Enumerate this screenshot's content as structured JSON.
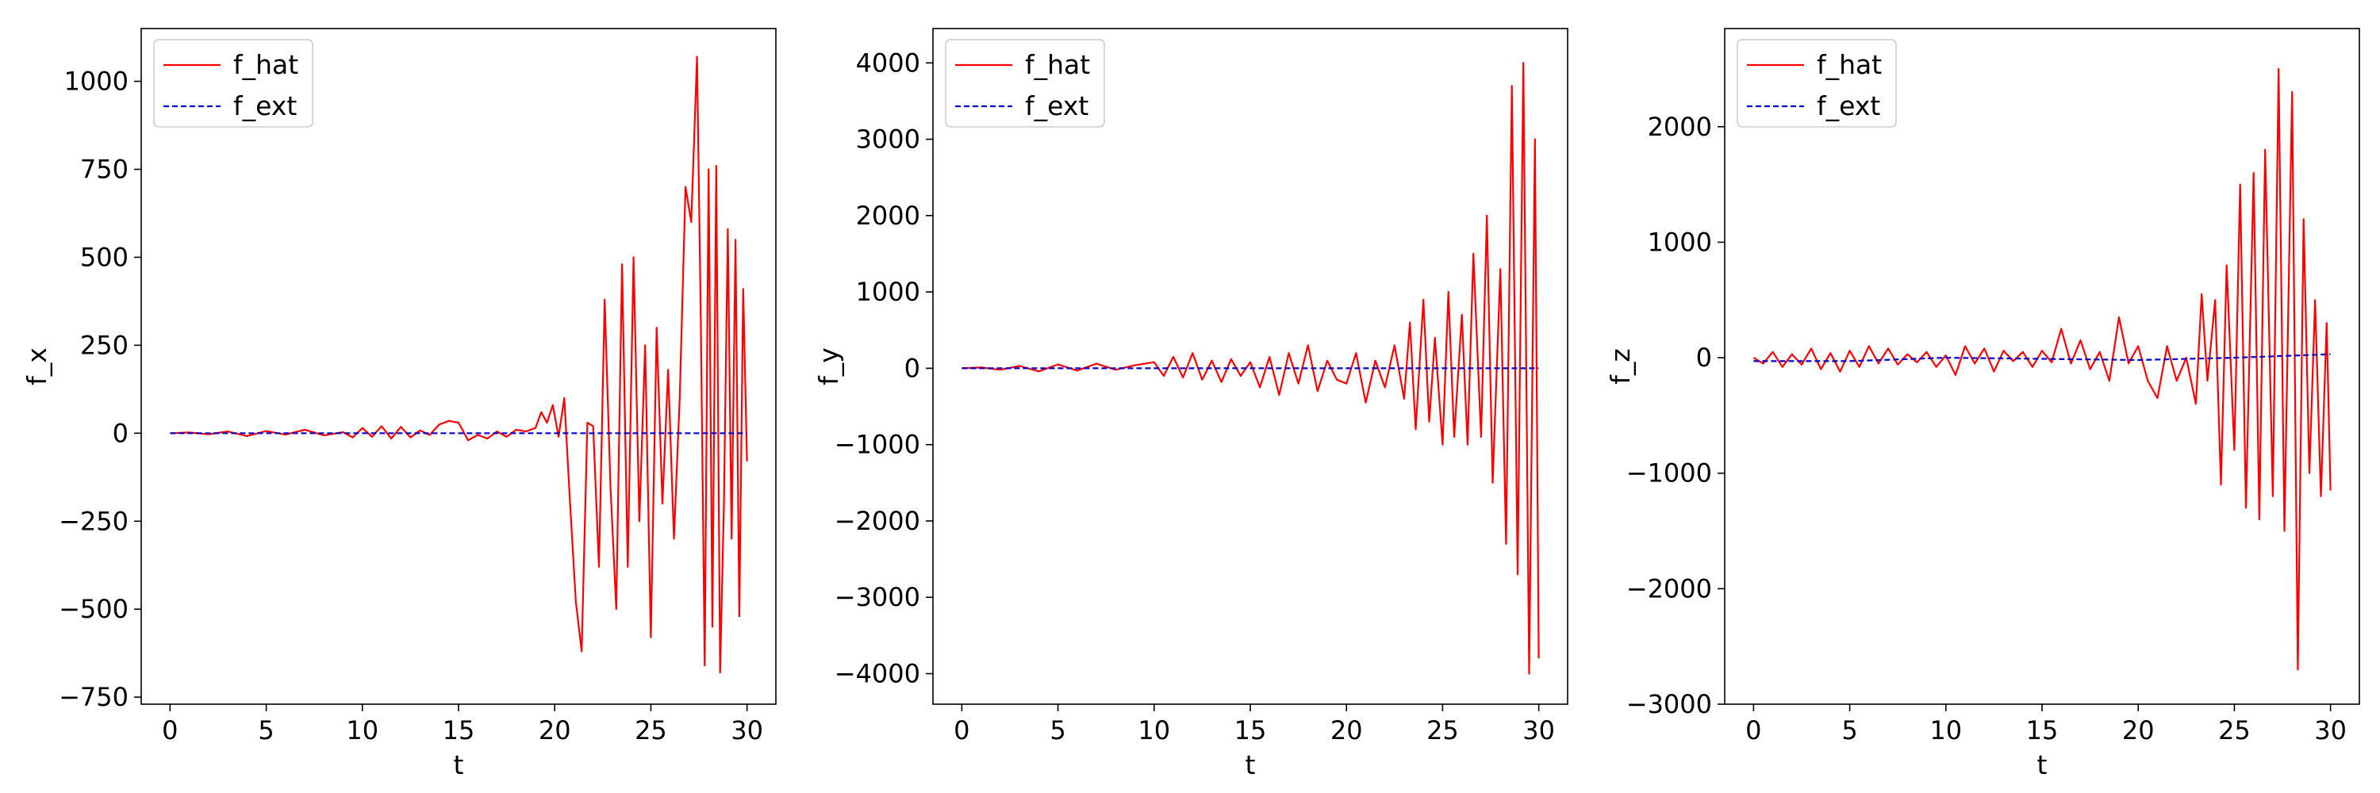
{
  "colors": {
    "f_hat": "#ff0000",
    "f_ext": "#0000cc",
    "frame": "#000000",
    "legend_border": "#cccccc"
  },
  "chart_data": [
    {
      "type": "line",
      "title": "",
      "xlabel": "t",
      "ylabel": "f_x",
      "xlim": [
        -1.5,
        31.5
      ],
      "ylim": [
        -770,
        1150
      ],
      "xticks": [
        0,
        5,
        10,
        15,
        20,
        25,
        30
      ],
      "yticks": [
        -750,
        -500,
        -250,
        0,
        250,
        500,
        750,
        1000
      ],
      "ytick_labels": [
        "−750",
        "−500",
        "−250",
        "0",
        "250",
        "500",
        "750",
        "1000"
      ],
      "legend": "top-left",
      "series": [
        {
          "name": "f_hat",
          "style": "solid",
          "x": [
            0,
            1,
            2,
            3,
            4,
            5,
            6,
            7,
            8,
            9,
            9.5,
            10,
            10.5,
            11,
            11.5,
            12,
            12.5,
            13,
            13.5,
            14,
            14.5,
            15,
            15.5,
            16,
            16.5,
            17,
            17.5,
            18,
            18.5,
            19,
            19.3,
            19.6,
            19.9,
            20.2,
            20.5,
            20.8,
            21.1,
            21.4,
            21.7,
            22,
            22.3,
            22.6,
            22.9,
            23.2,
            23.5,
            23.8,
            24.1,
            24.4,
            24.7,
            25,
            25.3,
            25.6,
            25.9,
            26.2,
            26.5,
            26.8,
            27.1,
            27.4,
            27.6,
            27.8,
            28,
            28.2,
            28.4,
            28.6,
            28.8,
            29,
            29.2,
            29.4,
            29.6,
            29.8,
            30
          ],
          "y": [
            0,
            2,
            -3,
            5,
            -8,
            6,
            -4,
            10,
            -6,
            3,
            -12,
            15,
            -10,
            20,
            -15,
            18,
            -12,
            8,
            -5,
            25,
            35,
            30,
            -20,
            -5,
            -15,
            5,
            -10,
            10,
            5,
            15,
            60,
            30,
            80,
            -10,
            100,
            -200,
            -480,
            -620,
            30,
            20,
            -380,
            380,
            -150,
            -500,
            480,
            -380,
            500,
            -250,
            250,
            -580,
            300,
            -200,
            180,
            -300,
            100,
            700,
            600,
            1070,
            300,
            -660,
            750,
            -550,
            760,
            -680,
            -200,
            580,
            -300,
            550,
            -520,
            410,
            -80
          ]
        },
        {
          "name": "f_ext",
          "style": "dashed",
          "x": [
            0,
            5,
            10,
            15,
            20,
            25,
            30
          ],
          "y": [
            0,
            0,
            0,
            0,
            0,
            0,
            0
          ]
        }
      ]
    },
    {
      "type": "line",
      "title": "",
      "xlabel": "t",
      "ylabel": "f_y",
      "xlim": [
        -1.5,
        31.5
      ],
      "ylim": [
        -4400,
        4450
      ],
      "xticks": [
        0,
        5,
        10,
        15,
        20,
        25,
        30
      ],
      "yticks": [
        -4000,
        -3000,
        -2000,
        -1000,
        0,
        1000,
        2000,
        3000,
        4000
      ],
      "ytick_labels": [
        "−4000",
        "−3000",
        "−2000",
        "−1000",
        "0",
        "1000",
        "2000",
        "3000",
        "4000"
      ],
      "legend": "top-left",
      "series": [
        {
          "name": "f_hat",
          "style": "solid",
          "x": [
            0,
            1,
            2,
            3,
            4,
            5,
            6,
            7,
            8,
            9,
            10,
            10.5,
            11,
            11.5,
            12,
            12.5,
            13,
            13.5,
            14,
            14.5,
            15,
            15.5,
            16,
            16.5,
            17,
            17.5,
            18,
            18.5,
            19,
            19.5,
            20,
            20.5,
            21,
            21.5,
            22,
            22.5,
            23,
            23.3,
            23.6,
            24,
            24.3,
            24.6,
            25,
            25.3,
            25.6,
            26,
            26.3,
            26.6,
            27,
            27.3,
            27.6,
            28,
            28.3,
            28.6,
            28.9,
            29.2,
            29.5,
            29.8,
            30
          ],
          "y": [
            0,
            10,
            -20,
            30,
            -40,
            50,
            -30,
            60,
            -20,
            40,
            80,
            -100,
            150,
            -120,
            200,
            -150,
            100,
            -180,
            120,
            -100,
            80,
            -250,
            150,
            -350,
            200,
            -200,
            300,
            -300,
            100,
            -150,
            -200,
            200,
            -450,
            100,
            -250,
            300,
            -400,
            600,
            -800,
            900,
            -700,
            400,
            -1000,
            1000,
            -900,
            700,
            -1000,
            1500,
            -900,
            2000,
            -1500,
            1300,
            -2300,
            3700,
            -2700,
            4000,
            -4000,
            3000,
            -3800
          ]
        },
        {
          "name": "f_ext",
          "style": "dashed",
          "x": [
            0,
            5,
            10,
            15,
            20,
            25,
            30
          ],
          "y": [
            0,
            0,
            0,
            0,
            0,
            0,
            0
          ]
        }
      ]
    },
    {
      "type": "line",
      "title": "",
      "xlabel": "t",
      "ylabel": "f_z",
      "xlim": [
        -1.5,
        31.5
      ],
      "ylim": [
        -3000,
        2850
      ],
      "xticks": [
        0,
        5,
        10,
        15,
        20,
        25,
        30
      ],
      "yticks": [
        -3000,
        -2000,
        -1000,
        0,
        1000,
        2000
      ],
      "ytick_labels": [
        "−3000",
        "−2000",
        "−1000",
        "0",
        "1000",
        "2000"
      ],
      "legend": "top-left",
      "series": [
        {
          "name": "f_hat",
          "style": "solid",
          "x": [
            0,
            0.5,
            1,
            1.5,
            2,
            2.5,
            3,
            3.5,
            4,
            4.5,
            5,
            5.5,
            6,
            6.5,
            7,
            7.5,
            8,
            8.5,
            9,
            9.5,
            10,
            10.5,
            11,
            11.5,
            12,
            12.5,
            13,
            13.5,
            14,
            14.5,
            15,
            15.5,
            16,
            16.5,
            17,
            17.5,
            18,
            18.5,
            19,
            19.5,
            20,
            20.5,
            21,
            21.5,
            22,
            22.5,
            23,
            23.3,
            23.6,
            24,
            24.3,
            24.6,
            25,
            25.3,
            25.6,
            26,
            26.3,
            26.6,
            27,
            27.3,
            27.6,
            28,
            28.3,
            28.6,
            28.9,
            29.2,
            29.5,
            29.8,
            30
          ],
          "y": [
            0,
            -50,
            50,
            -80,
            30,
            -60,
            80,
            -100,
            40,
            -120,
            60,
            -80,
            100,
            -50,
            80,
            -60,
            30,
            -40,
            50,
            -80,
            20,
            -150,
            100,
            -50,
            80,
            -120,
            60,
            -30,
            50,
            -80,
            60,
            -40,
            250,
            -50,
            150,
            -100,
            50,
            -200,
            350,
            -50,
            100,
            -200,
            -350,
            100,
            -200,
            0,
            -400,
            550,
            -200,
            500,
            -1100,
            800,
            -800,
            1500,
            -1300,
            1600,
            -1400,
            1800,
            -1200,
            2500,
            -1500,
            2300,
            -2700,
            1200,
            -1000,
            500,
            -1200,
            300,
            -1150
          ]
        },
        {
          "name": "f_ext",
          "style": "dashed",
          "x": [
            0,
            5,
            10,
            15,
            20,
            25,
            30
          ],
          "y": [
            -30,
            -30,
            0,
            -10,
            -20,
            0,
            30
          ]
        }
      ]
    }
  ]
}
